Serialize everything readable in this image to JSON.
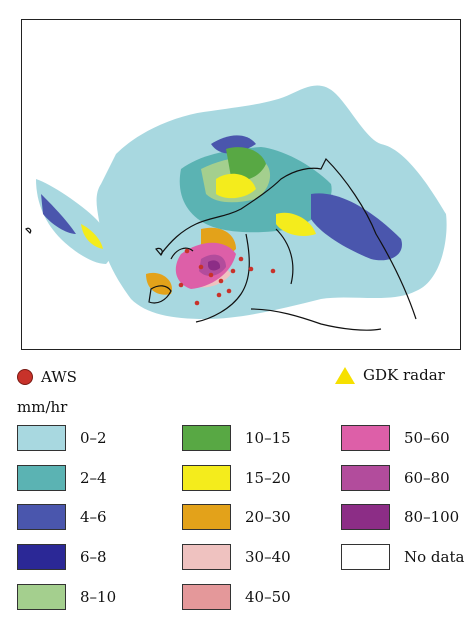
{
  "legend": {
    "aws_label": "AWS",
    "radar_label": "GDK radar",
    "unit": "mm/hr",
    "classes": [
      {
        "label": "0–2",
        "color": "#a8d8e0"
      },
      {
        "label": "2–4",
        "color": "#5bb3b3"
      },
      {
        "label": "4–6",
        "color": "#4a56ad"
      },
      {
        "label": "6–8",
        "color": "#2b2896"
      },
      {
        "label": "8–10",
        "color": "#a4cf8e"
      },
      {
        "label": "10–15",
        "color": "#58a844"
      },
      {
        "label": "15–20",
        "color": "#f4ec1c"
      },
      {
        "label": "20–30",
        "color": "#e3a21a"
      },
      {
        "label": "30–40",
        "color": "#efc2c0"
      },
      {
        "label": "40–50",
        "color": "#e4989a"
      },
      {
        "label": "50–60",
        "color": "#dd5fa8"
      },
      {
        "label": "60–80",
        "color": "#b24c9c"
      },
      {
        "label": "80–100",
        "color": "#8c2d86"
      },
      {
        "label": "No data",
        "color": "#ffffff"
      }
    ]
  },
  "colors": {
    "aws_marker": "#c8322a",
    "radar_marker": "#f6e000"
  }
}
